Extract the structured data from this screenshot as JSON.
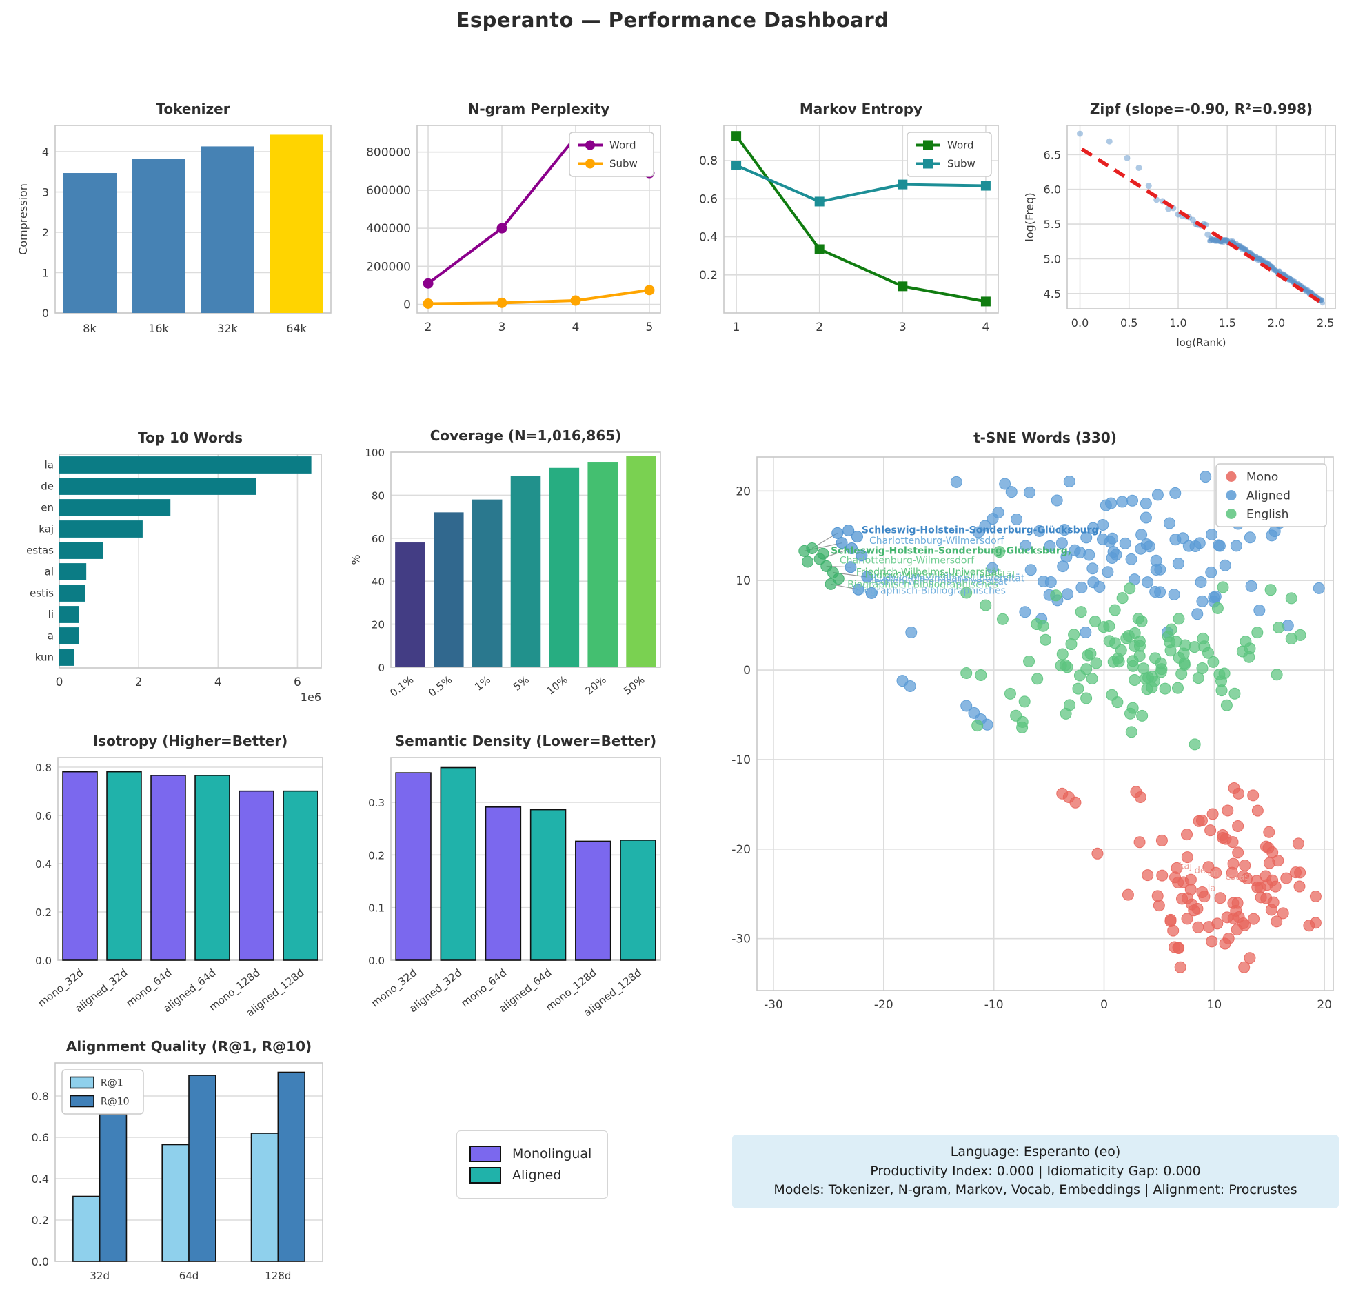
{
  "page": {
    "title": "Esperanto — Performance Dashboard"
  },
  "info_box": {
    "line1": "Language: Esperanto (eo)",
    "line2": "Productivity Index: 0.000  |  Idiomaticity Gap: 0.000",
    "line3": "Models: Tokenizer, N-gram, Markov, Vocab, Embeddings  |  Alignment: Procrustes"
  },
  "mid_legend": {
    "items": [
      {
        "label": "Monolingual",
        "color": "#7B68EE"
      },
      {
        "label": "Aligned",
        "color": "#20B2AA"
      }
    ]
  },
  "chart_data": [
    {
      "id": "tokenizer",
      "type": "bar",
      "title": "Tokenizer",
      "categories": [
        "8k",
        "16k",
        "32k",
        "64k"
      ],
      "values": [
        3.47,
        3.82,
        4.13,
        4.42
      ],
      "bar_colors": [
        "#4682B4",
        "#4682B4",
        "#4682B4",
        "#FFD400"
      ],
      "ylabel": "Compression",
      "ylim": [
        0,
        4.65
      ],
      "yticks": [
        {
          "v": 0,
          "l": "0"
        },
        {
          "v": 1,
          "l": "1"
        },
        {
          "v": 2,
          "l": "2"
        },
        {
          "v": 3,
          "l": "3"
        },
        {
          "v": 4,
          "l": "4"
        }
      ]
    },
    {
      "id": "ngram",
      "type": "line",
      "title": "N-gram Perplexity",
      "x": [
        2,
        3,
        4,
        5
      ],
      "xticks": [
        {
          "v": 2,
          "l": "2"
        },
        {
          "v": 3,
          "l": "3"
        },
        {
          "v": 4,
          "l": "4"
        },
        {
          "v": 5,
          "l": "5"
        }
      ],
      "xlim": [
        1.85,
        5.15
      ],
      "ylim": [
        -45000,
        940000
      ],
      "yticks": [
        {
          "v": 0,
          "l": "0"
        },
        {
          "v": 200000,
          "l": "200000"
        },
        {
          "v": 400000,
          "l": "400000"
        },
        {
          "v": 600000,
          "l": "600000"
        },
        {
          "v": 800000,
          "l": "800000"
        }
      ],
      "legend_pos": "tr",
      "series": [
        {
          "name": "Word",
          "color": "#8B008B",
          "marker": "circle",
          "values": [
            110000,
            400000,
            880000,
            690000
          ]
        },
        {
          "name": "Subw",
          "color": "#FFA500",
          "marker": "circle",
          "values": [
            4000,
            8000,
            20000,
            75000
          ]
        }
      ]
    },
    {
      "id": "markov",
      "type": "line",
      "title": "Markov Entropy",
      "x": [
        1,
        2,
        3,
        4
      ],
      "xticks": [
        {
          "v": 1,
          "l": "1"
        },
        {
          "v": 2,
          "l": "2"
        },
        {
          "v": 3,
          "l": "3"
        },
        {
          "v": 4,
          "l": "4"
        }
      ],
      "xlim": [
        0.85,
        4.15
      ],
      "ylim": [
        0.0,
        0.985
      ],
      "yticks": [
        {
          "v": 0.2,
          "l": "0.2"
        },
        {
          "v": 0.4,
          "l": "0.4"
        },
        {
          "v": 0.6,
          "l": "0.6"
        },
        {
          "v": 0.8,
          "l": "0.8"
        }
      ],
      "legend_pos": "tr",
      "series": [
        {
          "name": "Word",
          "color": "#107C10",
          "marker": "square",
          "values": [
            0.93,
            0.335,
            0.14,
            0.06
          ]
        },
        {
          "name": "Subw",
          "color": "#1C8E96",
          "marker": "square",
          "values": [
            0.775,
            0.585,
            0.675,
            0.668
          ]
        }
      ]
    },
    {
      "id": "zipf",
      "type": "zipf",
      "title": "Zipf (slope=-0.90, R²=0.998)",
      "xlabel": "log(Rank)",
      "ylabel": "log(Freq)",
      "xlim": [
        -0.13,
        2.6
      ],
      "ylim": [
        4.28,
        6.92
      ],
      "xticks": [
        {
          "v": 0,
          "l": "0.0"
        },
        {
          "v": 0.5,
          "l": "0.5"
        },
        {
          "v": 1,
          "l": "1.0"
        },
        {
          "v": 1.5,
          "l": "1.5"
        },
        {
          "v": 2,
          "l": "2.0"
        },
        {
          "v": 2.5,
          "l": "2.5"
        }
      ],
      "yticks": [
        {
          "v": 4.5,
          "l": "4.5"
        },
        {
          "v": 5.0,
          "l": "5.0"
        },
        {
          "v": 5.5,
          "l": "5.5"
        },
        {
          "v": 6.0,
          "l": "6.0"
        },
        {
          "v": 6.5,
          "l": "6.5"
        }
      ],
      "point_color": "#5D93C9",
      "fit_color": "#E62020",
      "points": [
        [
          0.0,
          6.8
        ],
        [
          0.3,
          6.69
        ],
        [
          0.48,
          6.45
        ],
        [
          0.6,
          6.31
        ],
        [
          0.7,
          6.05
        ],
        [
          0.78,
          5.85
        ],
        [
          0.84,
          5.83
        ],
        [
          0.9,
          5.72
        ],
        [
          0.95,
          5.73
        ],
        [
          1.0,
          5.64
        ],
        [
          1.04,
          5.62
        ],
        [
          1.08,
          5.61
        ],
        [
          1.11,
          5.6
        ],
        [
          1.15,
          5.56
        ],
        [
          1.18,
          5.5
        ],
        [
          1.2,
          5.49
        ],
        [
          1.23,
          5.48
        ],
        [
          1.26,
          5.5
        ],
        [
          1.28,
          5.49
        ],
        [
          1.3,
          5.35
        ]
      ],
      "band": [
        [
          1.32,
          5.28
        ],
        [
          1.4,
          5.265
        ],
        [
          1.48,
          5.255
        ],
        [
          1.55,
          5.24
        ],
        [
          1.62,
          5.18
        ],
        [
          1.7,
          5.1
        ],
        [
          1.8,
          5.01
        ],
        [
          1.9,
          4.93
        ],
        [
          2.0,
          4.83
        ],
        [
          2.1,
          4.74
        ],
        [
          2.2,
          4.64
        ],
        [
          2.3,
          4.55
        ],
        [
          2.4,
          4.45
        ],
        [
          2.47,
          4.38
        ]
      ],
      "band_n": 230,
      "fit": [
        [
          0.02,
          6.58
        ],
        [
          2.47,
          4.36
        ]
      ]
    },
    {
      "id": "top10",
      "type": "hbar",
      "title": "Top 10 Words",
      "categories": [
        "la",
        "de",
        "en",
        "kaj",
        "estas",
        "al",
        "estis",
        "li",
        "a",
        "kun"
      ],
      "values": [
        6350000,
        4950000,
        2800000,
        2100000,
        1100000,
        680000,
        660000,
        500000,
        495000,
        380000
      ],
      "bar_color": "#0B7C85",
      "xlim": [
        0,
        6600000
      ],
      "xticks": [
        {
          "v": 0,
          "l": "0"
        },
        {
          "v": 2000000,
          "l": "2"
        },
        {
          "v": 4000000,
          "l": "4"
        },
        {
          "v": 6000000,
          "l": "6"
        }
      ],
      "offset_label": "1e6"
    },
    {
      "id": "coverage",
      "type": "bar",
      "title": "Coverage (N=1,016,865)",
      "categories": [
        "0.1%",
        "0.5%",
        "1%",
        "5%",
        "10%",
        "20%",
        "50%"
      ],
      "values": [
        58,
        72,
        78,
        89,
        92.7,
        95.5,
        98.3
      ],
      "bar_colors": [
        "#433D84",
        "#31688E",
        "#2A788E",
        "#21918C",
        "#27AD81",
        "#44BF70",
        "#7AD151"
      ],
      "ylabel": "%",
      "ylim": [
        0,
        100
      ],
      "yticks": [
        {
          "v": 0,
          "l": "0"
        },
        {
          "v": 20,
          "l": "20"
        },
        {
          "v": 40,
          "l": "40"
        },
        {
          "v": 60,
          "l": "60"
        },
        {
          "v": 80,
          "l": "80"
        },
        {
          "v": 100,
          "l": "100"
        }
      ],
      "rotate_x": true
    },
    {
      "id": "tsne",
      "type": "tsne",
      "title": "t-SNE Words (330)",
      "xlim": [
        -31.5,
        20.8
      ],
      "ylim": [
        -35.8,
        23.8
      ],
      "xticks": [
        {
          "v": -30,
          "l": "-30"
        },
        {
          "v": -20,
          "l": "-20"
        },
        {
          "v": -10,
          "l": "-10"
        },
        {
          "v": 0,
          "l": "0"
        },
        {
          "v": 10,
          "l": "10"
        },
        {
          "v": 20,
          "l": "20"
        }
      ],
      "yticks": [
        {
          "v": -30,
          "l": "-30"
        },
        {
          "v": -20,
          "l": "-20"
        },
        {
          "v": -10,
          "l": "-10"
        },
        {
          "v": 0,
          "l": "0"
        },
        {
          "v": 10,
          "l": "10"
        },
        {
          "v": 20,
          "l": "20"
        }
      ],
      "legend": [
        {
          "name": "Mono",
          "color": "#E8655C"
        },
        {
          "name": "Aligned",
          "color": "#5B9BD5"
        },
        {
          "name": "English",
          "color": "#5CC47E"
        }
      ],
      "clusters": [
        {
          "name": "Aligned",
          "color": "#5B9BD5",
          "count": 92,
          "cx": 3.5,
          "cy": 13.0,
          "sx": 7.2,
          "sy": 4.0,
          "ymin": 4.2,
          "ymax": 21.6,
          "xmin": -11,
          "xmax": 19.5,
          "seed": 11
        },
        {
          "name": "English",
          "color": "#5CC47E",
          "count": 112,
          "cx": 2.0,
          "cy": 1.8,
          "sx": 6.6,
          "sy": 4.4,
          "ymin": -8.3,
          "ymax": 13.4,
          "xmin": -12.5,
          "xmax": 17.0,
          "seed": 22
        },
        {
          "name": "Mono",
          "color": "#E8655C",
          "count": 96,
          "cx": 10.0,
          "cy": -24.0,
          "sx": 4.3,
          "sy": 4.4,
          "ymin": -33.2,
          "ymax": -14.0,
          "xmin": 1.0,
          "xmax": 19.2,
          "seed": 33
        }
      ],
      "extra_points": {
        "Aligned": [
          [
            -17.5,
            4.2
          ],
          [
            -18.3,
            -1.2
          ],
          [
            -17.6,
            -1.8
          ],
          [
            -12.5,
            -4.0
          ],
          [
            -11.8,
            -4.8
          ],
          [
            -11.2,
            -5.5
          ],
          [
            -10.6,
            -6.1
          ],
          [
            -13.4,
            21.0
          ],
          [
            -9.0,
            20.8
          ],
          [
            -8.4,
            19.9
          ],
          [
            -9.6,
            17.6
          ],
          [
            -10.1,
            16.9
          ],
          [
            -10.8,
            16.1
          ],
          [
            -11.4,
            15.4
          ]
        ],
        "English": [
          [
            17.8,
            3.9
          ],
          [
            -9.5,
            13.2
          ],
          [
            -11.5,
            -6.2
          ],
          [
            -8.0,
            -5.1
          ],
          [
            -7.4,
            -5.8
          ]
        ],
        "Mono": [
          [
            -0.6,
            -20.5
          ],
          [
            -3.8,
            -13.8
          ],
          [
            -3.2,
            -14.2
          ],
          [
            -2.6,
            -14.8
          ],
          [
            2.9,
            -13.6
          ],
          [
            3.3,
            -14.2
          ],
          [
            11.8,
            -13.2
          ],
          [
            12.2,
            -13.8
          ]
        ]
      },
      "left_cluster": {
        "green": [
          [
            -27.2,
            13.3
          ],
          [
            -26.5,
            13.6
          ],
          [
            -25.8,
            12.4
          ],
          [
            -26.9,
            12.1
          ],
          [
            -25.2,
            11.6
          ],
          [
            -24.6,
            10.9
          ],
          [
            -24.1,
            10.2
          ],
          [
            -24.8,
            9.6
          ],
          [
            -25.5,
            13.0
          ]
        ],
        "blue": [
          [
            -24.2,
            15.3
          ],
          [
            -23.2,
            15.6
          ],
          [
            -22.4,
            14.9
          ],
          [
            -23.8,
            14.2
          ],
          [
            -22.9,
            13.6
          ],
          [
            -22.0,
            12.8
          ],
          [
            -21.5,
            10.4
          ],
          [
            -22.3,
            9.0
          ],
          [
            -21.1,
            8.6
          ],
          [
            -23.0,
            11.5
          ]
        ],
        "segments": [
          [
            [
              -26.5,
              13.6
            ],
            [
              -24.2,
              15.3
            ]
          ],
          [
            [
              -27.2,
              13.3
            ],
            [
              -23.8,
              14.2
            ]
          ],
          [
            [
              -25.8,
              12.4
            ],
            [
              -22.9,
              13.6
            ]
          ],
          [
            [
              -25.2,
              11.6
            ],
            [
              -23.0,
              11.5
            ]
          ],
          [
            [
              -24.6,
              10.9
            ],
            [
              -21.5,
              10.4
            ]
          ],
          [
            [
              -24.8,
              9.6
            ],
            [
              -22.3,
              9.0
            ]
          ]
        ]
      },
      "labels": [
        {
          "text": "Schleswig-Holstein-Sonderburg-Glücksburg,",
          "x": -22.0,
          "y": 15.3,
          "color": "#3F87C7",
          "bold": true
        },
        {
          "text": "Charlottenburg-Wilmersdorf",
          "x": -21.3,
          "y": 14.1,
          "color": "#6FAEDD",
          "bold": false
        },
        {
          "text": "Schleswig-Holstein-Sonderburg-Glücksburg,",
          "x": -24.8,
          "y": 13.0,
          "color": "#45B56F",
          "bold": true
        },
        {
          "text": "Charlottenburg-Wilmersdorf",
          "x": -24.0,
          "y": 11.9,
          "color": "#72CE93",
          "bold": false
        },
        {
          "text": "Friedrich-Wilhelms-Universität",
          "x": -22.5,
          "y": 10.6,
          "color": "#5CC47E",
          "bold": false
        },
        {
          "text": "Ludwig-Maximilians-Universität",
          "x": -21.7,
          "y": 10.25,
          "color": "#5CC47E",
          "bold": false
        },
        {
          "text": "Ludwig-Maximilians-Universität",
          "x": -20.9,
          "y": 9.9,
          "color": "#6FAEDD",
          "bold": false
        },
        {
          "text": "Friedrich-Wilhelms-Universität",
          "x": -21.9,
          "y": 9.55,
          "color": "#6FAEDD",
          "bold": false
        },
        {
          "text": "Biographisch-Bibliographisches",
          "x": -23.3,
          "y": 9.2,
          "color": "#72CE93",
          "bold": false
        },
        {
          "text": "Biographisch-Bibliographisches",
          "x": -22.6,
          "y": 8.5,
          "color": "#6FAEDD",
          "bold": false
        }
      ],
      "word_labels": [
        {
          "text": "kaj",
          "x": 6.8,
          "y": -22.2
        },
        {
          "text": "de",
          "x": 8.2,
          "y": -22.7
        },
        {
          "text": "en",
          "x": 9.4,
          "y": -23.0
        },
        {
          "text": "estas",
          "x": 11.0,
          "y": -23.4
        },
        {
          "text": "la",
          "x": 9.4,
          "y": -24.7
        }
      ],
      "word_label_color": "#EC9E96"
    },
    {
      "id": "isotropy",
      "type": "bar",
      "title": "Isotropy (Higher=Better)",
      "categories": [
        "mono_32d",
        "aligned_32d",
        "mono_64d",
        "aligned_64d",
        "mono_128d",
        "aligned_128d"
      ],
      "values": [
        0.781,
        0.781,
        0.766,
        0.766,
        0.701,
        0.701
      ],
      "bar_colors": [
        "#7B68EE",
        "#20B2AA",
        "#7B68EE",
        "#20B2AA",
        "#7B68EE",
        "#20B2AA"
      ],
      "edge": "#111111",
      "ylim": [
        0,
        0.84
      ],
      "yticks": [
        {
          "v": 0,
          "l": "0.0"
        },
        {
          "v": 0.2,
          "l": "0.2"
        },
        {
          "v": 0.4,
          "l": "0.4"
        },
        {
          "v": 0.6,
          "l": "0.6"
        },
        {
          "v": 0.8,
          "l": "0.8"
        }
      ],
      "rotate_x": true
    },
    {
      "id": "semantic",
      "type": "bar",
      "title": "Semantic Density (Lower=Better)",
      "categories": [
        "mono_32d",
        "aligned_32d",
        "mono_64d",
        "aligned_64d",
        "mono_128d",
        "aligned_128d"
      ],
      "values": [
        0.356,
        0.366,
        0.291,
        0.286,
        0.226,
        0.228
      ],
      "bar_colors": [
        "#7B68EE",
        "#20B2AA",
        "#7B68EE",
        "#20B2AA",
        "#7B68EE",
        "#20B2AA"
      ],
      "edge": "#111111",
      "ylim": [
        0,
        0.385
      ],
      "yticks": [
        {
          "v": 0,
          "l": "0.0"
        },
        {
          "v": 0.1,
          "l": "0.1"
        },
        {
          "v": 0.2,
          "l": "0.2"
        },
        {
          "v": 0.3,
          "l": "0.3"
        }
      ],
      "rotate_x": true
    },
    {
      "id": "alignment",
      "type": "groupbar",
      "title": "Alignment Quality (R@1, R@10)",
      "categories": [
        "32d",
        "64d",
        "128d"
      ],
      "ylim": [
        0,
        0.96
      ],
      "yticks": [
        {
          "v": 0,
          "l": "0.0"
        },
        {
          "v": 0.2,
          "l": "0.2"
        },
        {
          "v": 0.4,
          "l": "0.4"
        },
        {
          "v": 0.6,
          "l": "0.6"
        },
        {
          "v": 0.8,
          "l": "0.8"
        }
      ],
      "legend_pos": "tl",
      "edge": "#111111",
      "series": [
        {
          "name": "R@1",
          "color": "#8FD0EC",
          "values": [
            0.315,
            0.565,
            0.62
          ]
        },
        {
          "name": "R@10",
          "color": "#4080B8",
          "values": [
            0.71,
            0.9,
            0.915
          ]
        }
      ]
    }
  ]
}
